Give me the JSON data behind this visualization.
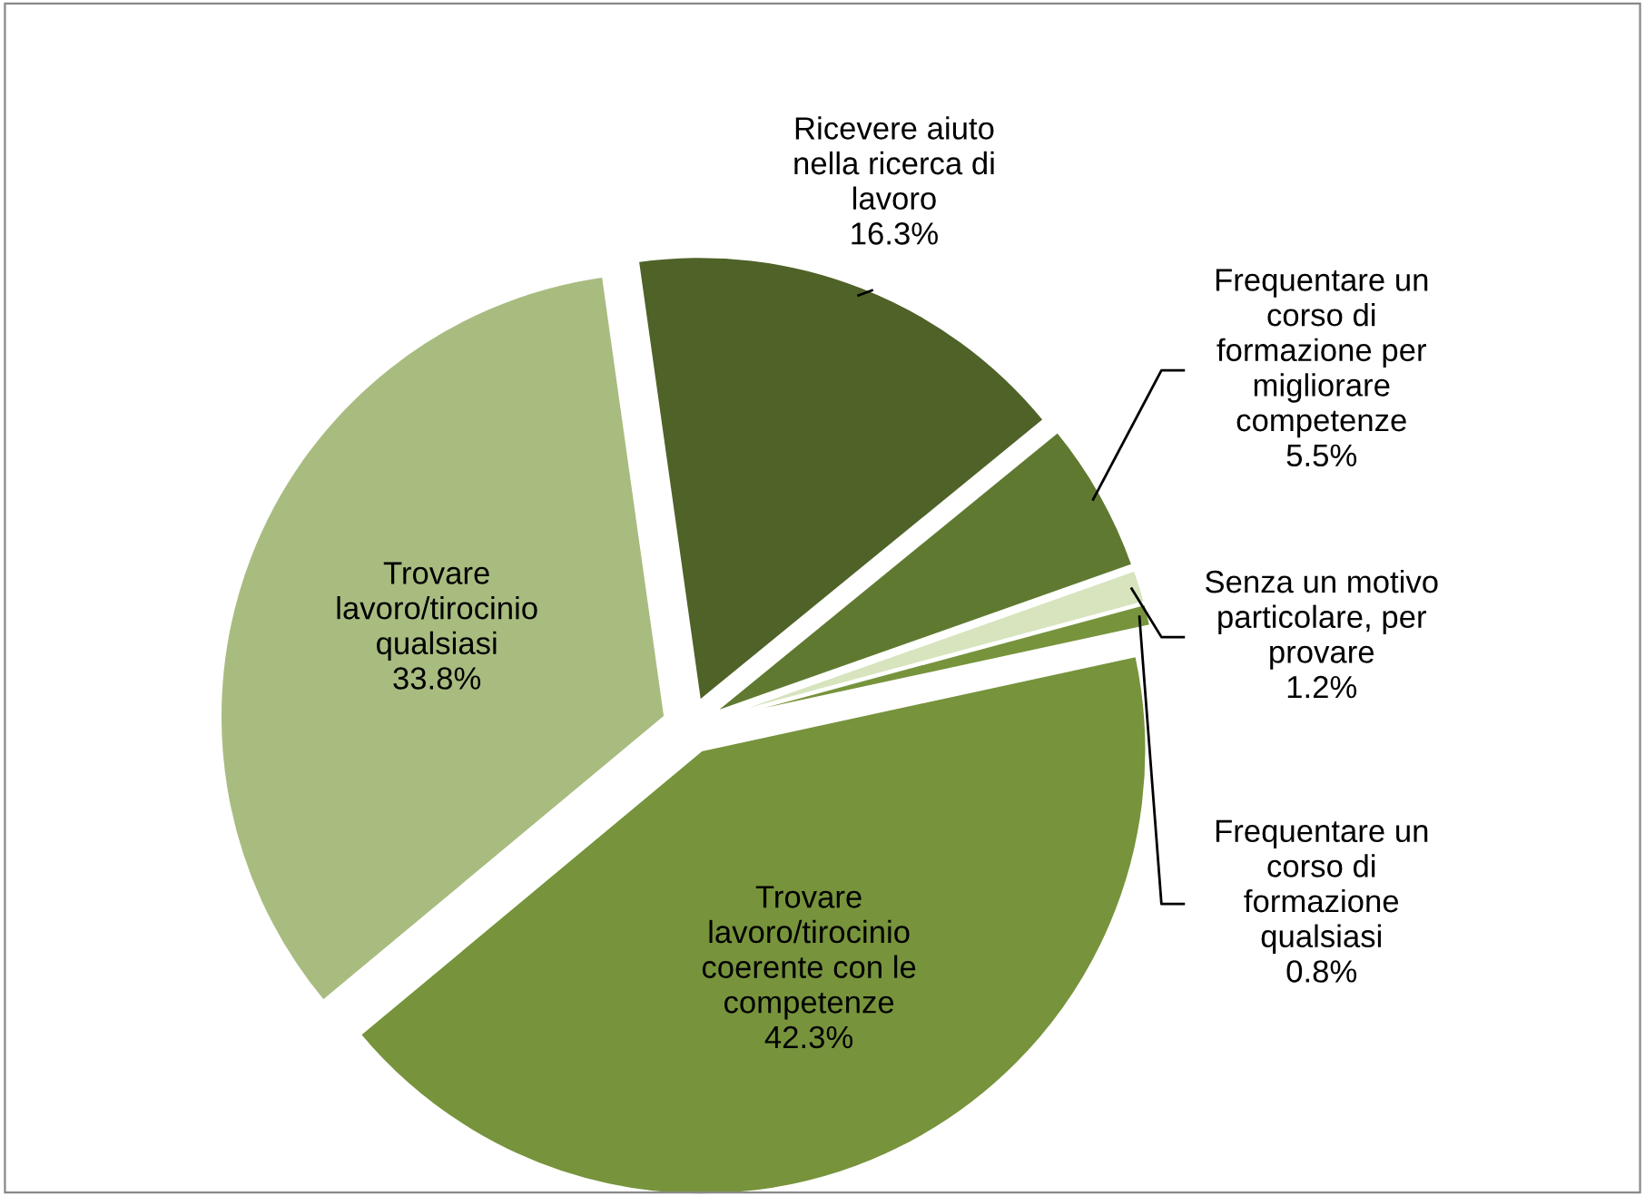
{
  "chart_data": {
    "type": "pie",
    "categories": [
      "Ricevere aiuto\nnella ricerca di\nlavoro",
      "Frequentare un\ncorso di\nformazione per\nmigliorare\ncompetenze",
      "Senza un motivo\nparticolare, per\nprovare",
      "Frequentare un\ncorso di\nformazione\nqualsiasi",
      "Trovare\nlavoro/tirocinio\ncoerente con le\ncompetenze",
      "Trovare\nlavoro/tirocinio\nqualsiasi"
    ],
    "values": [
      16.3,
      5.5,
      1.2,
      0.8,
      42.3,
      33.8
    ],
    "value_labels": [
      "16.3%",
      "5.5%",
      "1.2%",
      "0.8%",
      "42.3%",
      "33.8%"
    ],
    "colors": [
      "#4f6228",
      "#5f7a30",
      "#d7e4bd",
      "#77933c",
      "#77933c",
      "#a9bc80"
    ]
  }
}
